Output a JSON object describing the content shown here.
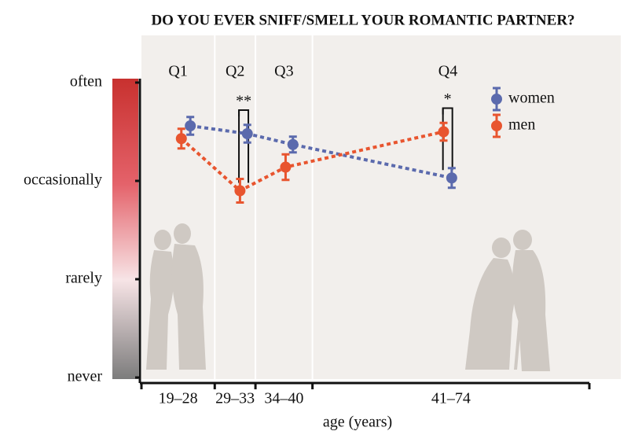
{
  "chart_data": {
    "type": "line",
    "title": "DO YOU EVER SNIFF/SMELL YOUR ROMANTIC PARTNER?",
    "xlabel": "age (years)",
    "quartiles": [
      "Q1",
      "Q2",
      "Q3",
      "Q4"
    ],
    "age_groups": [
      "19–28",
      "29–33",
      "34–40",
      "41–74"
    ],
    "xlim": [
      19,
      74
    ],
    "xticks": [
      19,
      28,
      33,
      40,
      74
    ],
    "ylim": [
      0,
      3
    ],
    "yticks": [
      {
        "value": 0,
        "label": "never"
      },
      {
        "value": 1,
        "label": "rarely"
      },
      {
        "value": 2,
        "label": "occasionally"
      },
      {
        "value": 3,
        "label": "often"
      }
    ],
    "series": [
      {
        "name": "women",
        "color": "#5b6aad",
        "x": [
          25.0,
          32.0,
          37.6,
          57.1
        ],
        "values": [
          2.56,
          2.48,
          2.37,
          2.03
        ],
        "errors": [
          0.09,
          0.09,
          0.08,
          0.1
        ]
      },
      {
        "name": "men",
        "color": "#e8552f",
        "x": [
          23.9,
          31.1,
          36.7,
          56.1
        ],
        "values": [
          2.43,
          1.9,
          2.14,
          2.5
        ],
        "errors": [
          0.1,
          0.12,
          0.13,
          0.09
        ]
      }
    ],
    "annotations": [
      {
        "text": "**",
        "index": 1
      },
      {
        "text": "*",
        "index": 3
      }
    ]
  }
}
